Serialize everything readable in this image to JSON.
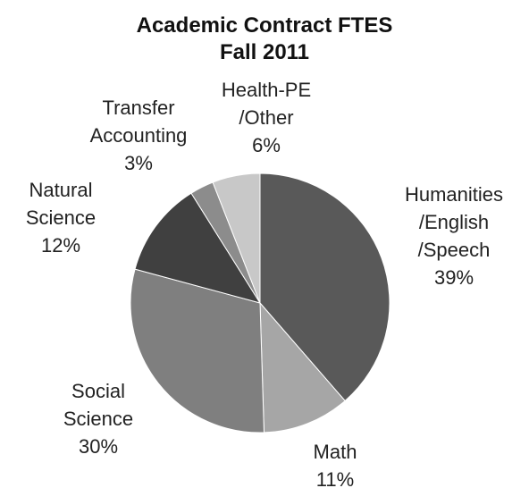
{
  "chart_data": {
    "type": "pie",
    "title": "Academic Contract FTES\nFall 2011",
    "categories": [
      "Humanities\n/English\n/Speech",
      "Math",
      "Social\nScience",
      "Natural\nScience",
      "Transfer\nAccounting",
      "Health-PE\n/Other"
    ],
    "values": [
      39,
      11,
      30,
      12,
      3,
      6
    ],
    "value_labels": [
      "39%",
      "11%",
      "30%",
      "12%",
      "3%",
      "6%"
    ],
    "colors": [
      "#595959",
      "#a6a6a6",
      "#7f7f7f",
      "#404040",
      "#8c8c8c",
      "#c8c8c8"
    ]
  }
}
